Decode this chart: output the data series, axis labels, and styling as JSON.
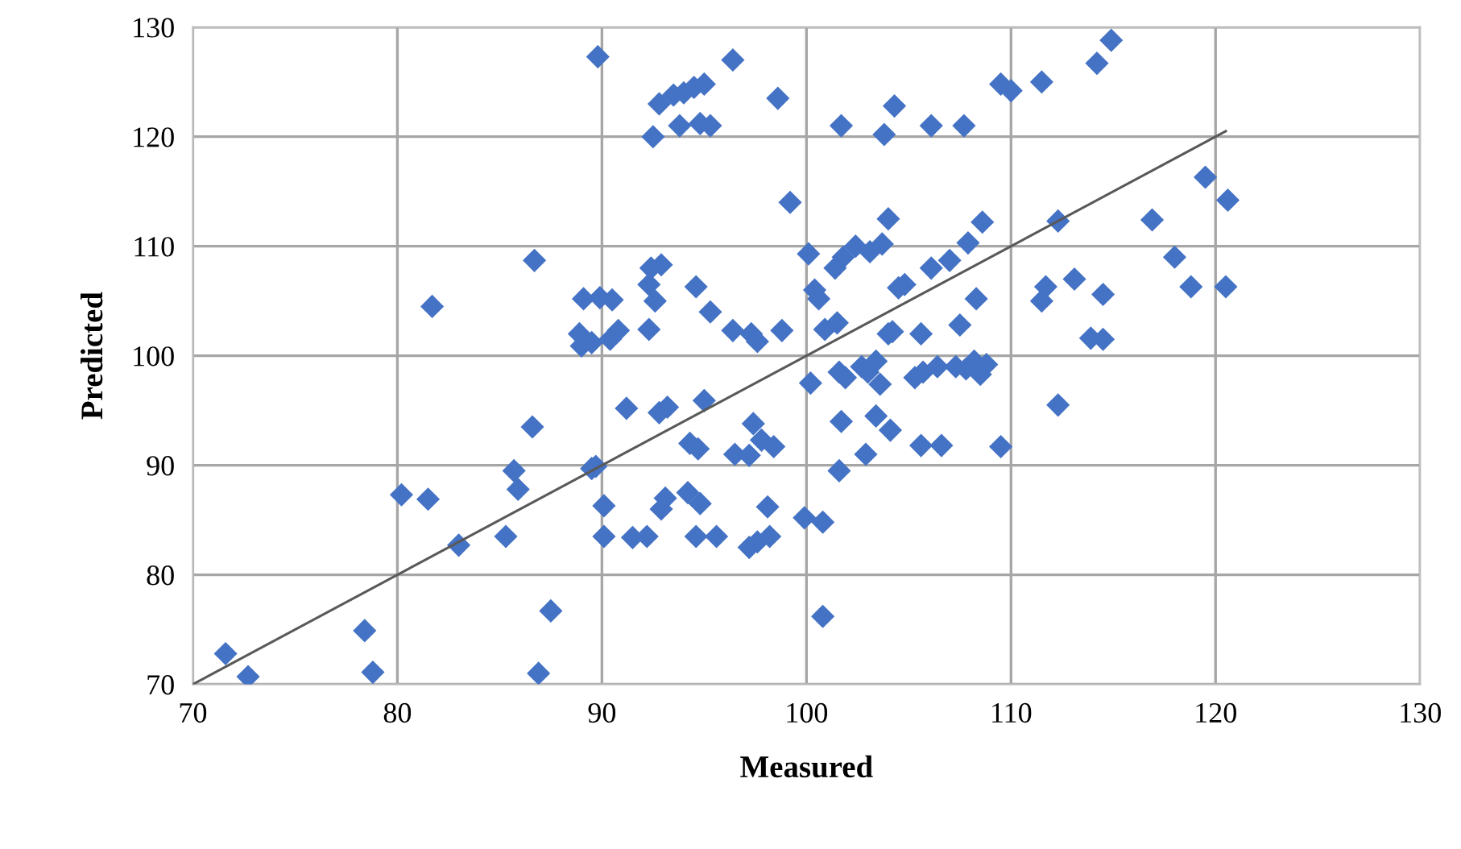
{
  "chart_data": {
    "type": "scatter",
    "xlabel": "Measured",
    "ylabel": "Predicted",
    "xlim": [
      70,
      130
    ],
    "ylim": [
      70,
      130
    ],
    "xticks": [
      70,
      80,
      90,
      100,
      110,
      120,
      130
    ],
    "yticks": [
      70,
      80,
      90,
      100,
      110,
      120,
      130
    ],
    "grid": true,
    "legend": false,
    "marker": "diamond",
    "series": [
      {
        "color": "#4472c4",
        "x": [
          89.8,
          96.4,
          92.8,
          93.5,
          94,
          94.5,
          95,
          93.8,
          94.8,
          95.3,
          92.5,
          98.6,
          101.7,
          103.8,
          104.3,
          106.1,
          107.7,
          109.5,
          110,
          111.5,
          114.2,
          114.9,
          99.2,
          104,
          108.6,
          112.3,
          116.9,
          119.5,
          120.6,
          118,
          118.8,
          120.5,
          114.5,
          113.1,
          111.7,
          111.5,
          113.9,
          114.5,
          112.3,
          109.5,
          108.3,
          107.9,
          107,
          106.1,
          104.8,
          104.5,
          102.4,
          103.1,
          103.7,
          101.8,
          101.4,
          100.1,
          100.4,
          100.6,
          101.5,
          100.9,
          104,
          104.2,
          105.6,
          107.5,
          107.3,
          107.8,
          108.2,
          108.5,
          108.8,
          106.4,
          105.7,
          105.3,
          103.6,
          103,
          102.7,
          103.4,
          101.6,
          101.9,
          100.2,
          101.7,
          102.9,
          101.6,
          103.4,
          104.1,
          105.6,
          106.6,
          100.8,
          99.9,
          100.8,
          81.7,
          86.7,
          89.1,
          89.9,
          90.5,
          88.9,
          89.5,
          89,
          90.4,
          90.8,
          92.3,
          92.3,
          92.6,
          92.9,
          92.4,
          94.6,
          95.3,
          96.4,
          97.3,
          97.6,
          98.8,
          91.2,
          93.2,
          92.8,
          94.3,
          94.7,
          95,
          97.4,
          97.8,
          98.4,
          96.5,
          97.2,
          89.5,
          89.7,
          86.6,
          85.7,
          85.9,
          80.2,
          81.5,
          83,
          85.3,
          90.1,
          90.1,
          91.5,
          92.2,
          92.9,
          93.1,
          94.2,
          94.8,
          94.6,
          95.6,
          97.2,
          97.6,
          98.2,
          98.1,
          71.6,
          72.7,
          78.4,
          78.8,
          86.9,
          87.5
        ],
        "values": [
          127.3,
          127,
          123,
          123.8,
          124,
          124.5,
          124.8,
          121,
          121.2,
          121,
          120,
          123.5,
          121,
          120.2,
          122.8,
          121,
          121,
          124.8,
          124.2,
          125,
          126.7,
          128.8,
          114,
          112.5,
          112.2,
          112.3,
          112.4,
          116.3,
          114.2,
          109,
          106.3,
          106.3,
          105.6,
          107,
          106.3,
          105,
          101.6,
          101.5,
          95.5,
          91.7,
          105.2,
          110.3,
          108.7,
          108,
          106.5,
          106.2,
          110,
          109.5,
          110.2,
          109,
          108,
          109.3,
          106,
          105.2,
          103,
          102.4,
          102,
          102.2,
          102,
          102.8,
          99,
          98.8,
          99.5,
          98.3,
          99.2,
          99,
          98.5,
          98,
          97.4,
          98.5,
          99,
          99.5,
          98.5,
          98,
          97.5,
          94,
          91,
          89.5,
          94.5,
          93.2,
          91.8,
          91.8,
          84.8,
          85.2,
          76.2,
          104.5,
          108.7,
          105.2,
          105.3,
          105.1,
          102,
          101.2,
          100.9,
          101.5,
          102.3,
          102.4,
          106.5,
          105,
          108.3,
          108,
          106.3,
          104,
          102.3,
          102,
          101.3,
          102.3,
          95.2,
          95.3,
          94.8,
          92,
          91.5,
          95.9,
          93.8,
          92.3,
          91.7,
          91,
          90.9,
          89.7,
          89.9,
          93.5,
          89.5,
          87.8,
          87.3,
          86.9,
          82.7,
          83.5,
          86.3,
          83.5,
          83.4,
          83.5,
          86,
          87,
          87.5,
          86.5,
          83.5,
          83.5,
          82.5,
          83,
          83.5,
          86.2,
          72.8,
          70.7,
          74.9,
          71.1,
          71,
          76.7
        ]
      },
      {
        "type": "line",
        "color": "#595959",
        "marker": "none",
        "x": [
          70,
          120.5
        ],
        "values": [
          70,
          120.5
        ]
      }
    ]
  }
}
